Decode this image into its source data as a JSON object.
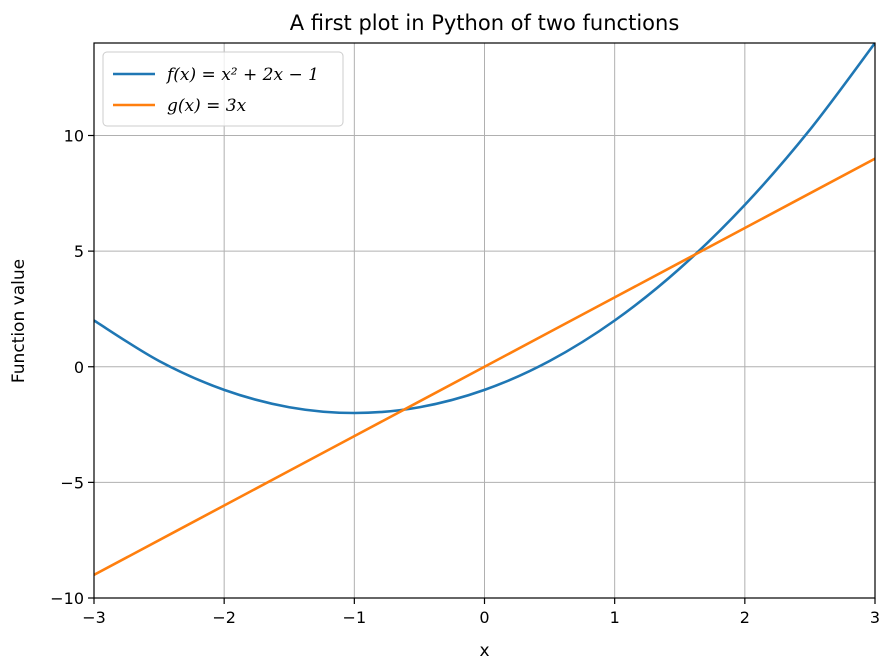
{
  "chart_data": {
    "type": "line",
    "title": "A first plot in Python of two functions",
    "xlabel": "x",
    "ylabel": "Function value",
    "xlim": [
      -3,
      3
    ],
    "ylim": [
      -10,
      14
    ],
    "xticks": [
      -3,
      -2,
      -1,
      0,
      1,
      2,
      3
    ],
    "xtick_labels": [
      "−3",
      "−2",
      "−1",
      "0",
      "1",
      "2",
      "3"
    ],
    "yticks": [
      -10,
      -5,
      0,
      5,
      10
    ],
    "ytick_labels": [
      "−10",
      "−5",
      "0",
      "5",
      "10"
    ],
    "grid": true,
    "legend_position": "top-left",
    "series": [
      {
        "name": "f(x) = x² + 2x − 1",
        "color": "#1f77b4",
        "x": [
          -3,
          -2.5,
          -2,
          -1.5,
          -1,
          -0.5,
          0,
          0.5,
          1,
          1.5,
          2,
          2.5,
          3
        ],
        "y": [
          2,
          0.25,
          -1,
          -1.75,
          -2,
          -1.75,
          -1,
          0.25,
          2,
          4.25,
          7,
          10.25,
          14
        ]
      },
      {
        "name": "g(x) = 3x",
        "color": "#ff7f0e",
        "x": [
          -3,
          -2,
          -1,
          0,
          1,
          2,
          3
        ],
        "y": [
          -9,
          -6,
          -3,
          0,
          3,
          6,
          9
        ]
      }
    ]
  }
}
